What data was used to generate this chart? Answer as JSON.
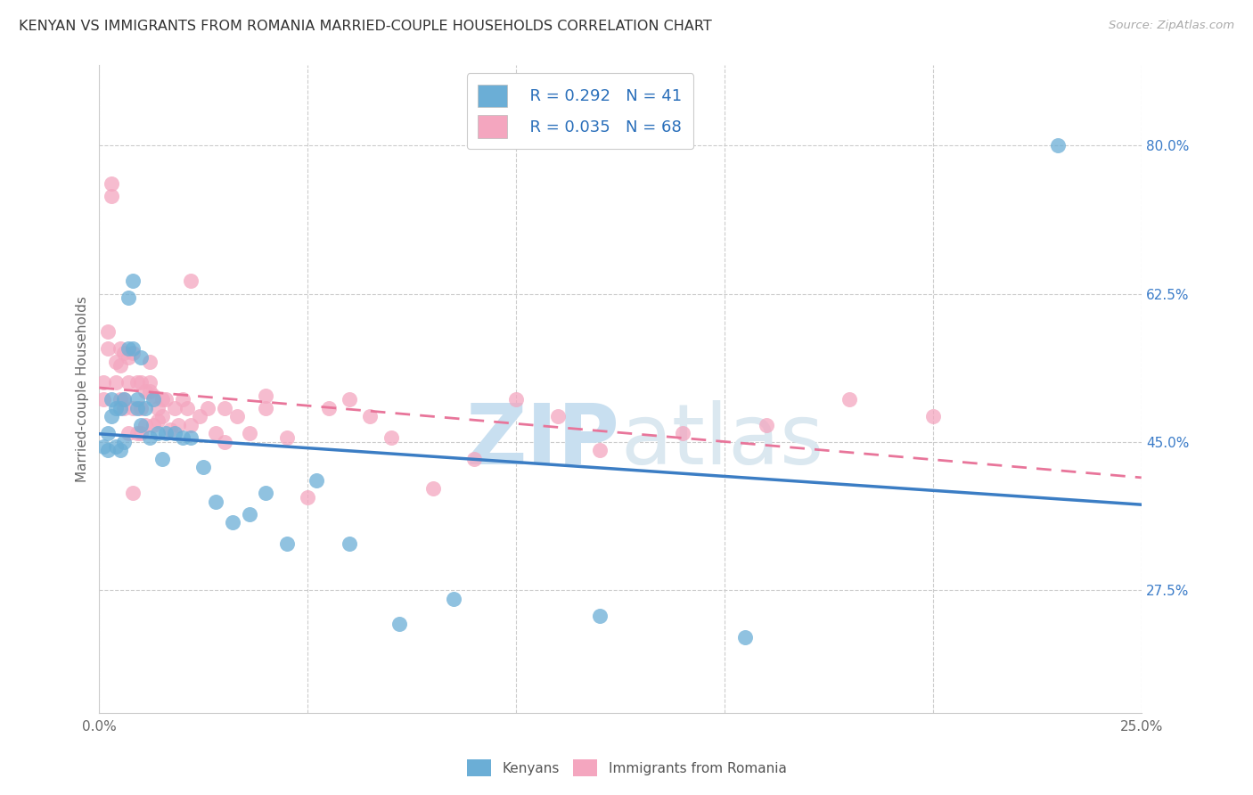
{
  "title": "KENYAN VS IMMIGRANTS FROM ROMANIA MARRIED-COUPLE HOUSEHOLDS CORRELATION CHART",
  "source": "Source: ZipAtlas.com",
  "ylabel": "Married-couple Households",
  "ytick_labels": [
    "80.0%",
    "62.5%",
    "45.0%",
    "27.5%"
  ],
  "ytick_values": [
    0.8,
    0.625,
    0.45,
    0.275
  ],
  "xmin": 0.0,
  "xmax": 0.25,
  "ymin": 0.13,
  "ymax": 0.895,
  "legend_R_kenyan": "R = 0.292",
  "legend_N_kenyan": "N = 41",
  "legend_R_romania": "R = 0.035",
  "legend_N_romania": "N = 68",
  "kenyan_color": "#6baed6",
  "romania_color": "#f4a6bf",
  "kenyan_line_color": "#3b7dc4",
  "romania_line_color": "#e8759a",
  "watermark_zip": "ZIP",
  "watermark_atlas": "atlas",
  "kenyan_x": [
    0.001,
    0.002,
    0.002,
    0.003,
    0.003,
    0.004,
    0.004,
    0.005,
    0.005,
    0.006,
    0.006,
    0.007,
    0.007,
    0.008,
    0.008,
    0.009,
    0.009,
    0.01,
    0.01,
    0.011,
    0.012,
    0.013,
    0.014,
    0.015,
    0.016,
    0.018,
    0.02,
    0.022,
    0.025,
    0.028,
    0.032,
    0.036,
    0.04,
    0.045,
    0.052,
    0.06,
    0.072,
    0.085,
    0.12,
    0.155,
    0.23
  ],
  "kenyan_y": [
    0.445,
    0.44,
    0.46,
    0.5,
    0.48,
    0.49,
    0.445,
    0.44,
    0.49,
    0.5,
    0.45,
    0.56,
    0.62,
    0.64,
    0.56,
    0.49,
    0.5,
    0.55,
    0.47,
    0.49,
    0.455,
    0.5,
    0.46,
    0.43,
    0.46,
    0.46,
    0.455,
    0.455,
    0.42,
    0.38,
    0.355,
    0.365,
    0.39,
    0.33,
    0.405,
    0.33,
    0.235,
    0.265,
    0.245,
    0.22,
    0.8
  ],
  "romania_x": [
    0.001,
    0.001,
    0.002,
    0.002,
    0.003,
    0.003,
    0.004,
    0.004,
    0.005,
    0.005,
    0.005,
    0.006,
    0.006,
    0.006,
    0.007,
    0.007,
    0.007,
    0.008,
    0.008,
    0.009,
    0.009,
    0.01,
    0.01,
    0.01,
    0.011,
    0.011,
    0.012,
    0.012,
    0.013,
    0.013,
    0.014,
    0.014,
    0.015,
    0.016,
    0.017,
    0.018,
    0.019,
    0.02,
    0.021,
    0.022,
    0.024,
    0.026,
    0.028,
    0.03,
    0.033,
    0.036,
    0.04,
    0.045,
    0.05,
    0.055,
    0.06,
    0.065,
    0.07,
    0.08,
    0.09,
    0.1,
    0.11,
    0.12,
    0.14,
    0.16,
    0.18,
    0.2,
    0.015,
    0.022,
    0.03,
    0.04,
    0.008,
    0.012
  ],
  "romania_y": [
    0.5,
    0.52,
    0.56,
    0.58,
    0.755,
    0.74,
    0.52,
    0.545,
    0.54,
    0.5,
    0.56,
    0.555,
    0.5,
    0.49,
    0.55,
    0.52,
    0.46,
    0.555,
    0.49,
    0.52,
    0.46,
    0.52,
    0.49,
    0.46,
    0.51,
    0.47,
    0.545,
    0.52,
    0.505,
    0.47,
    0.49,
    0.475,
    0.48,
    0.5,
    0.465,
    0.49,
    0.47,
    0.5,
    0.49,
    0.47,
    0.48,
    0.49,
    0.46,
    0.45,
    0.48,
    0.46,
    0.49,
    0.455,
    0.385,
    0.49,
    0.5,
    0.48,
    0.455,
    0.395,
    0.43,
    0.5,
    0.48,
    0.44,
    0.46,
    0.47,
    0.5,
    0.48,
    0.5,
    0.64,
    0.49,
    0.505,
    0.39,
    0.51
  ]
}
